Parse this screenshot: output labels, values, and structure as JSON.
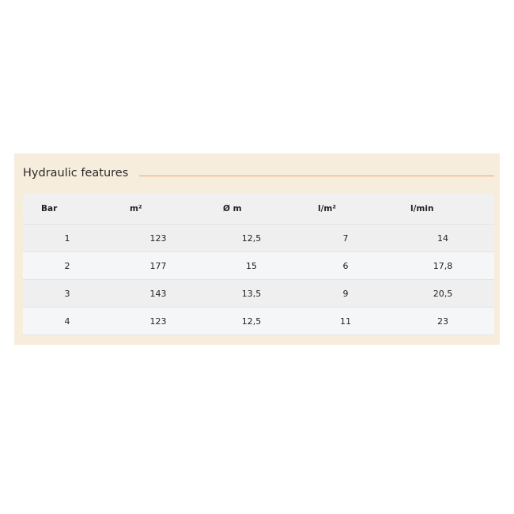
{
  "section": {
    "title": "Hydraulic features",
    "accent_color": "#e8a770"
  },
  "table": {
    "headers": [
      "Bar",
      "m²",
      "Ø m",
      "l/m²",
      "l/min"
    ],
    "rows": [
      [
        "1",
        "123",
        "12,5",
        "7",
        "14"
      ],
      [
        "2",
        "177",
        "15",
        "6",
        "17,8"
      ],
      [
        "3",
        "143",
        "13,5",
        "9",
        "20,5"
      ],
      [
        "4",
        "123",
        "12,5",
        "11",
        "23"
      ]
    ]
  }
}
